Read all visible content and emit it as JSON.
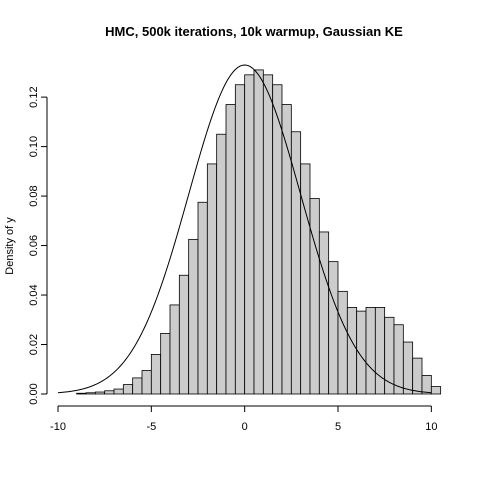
{
  "chart_data": {
    "type": "bar",
    "title": "HMC, 500k iterations, 10k warmup, Gaussian KE",
    "xlabel": "",
    "ylabel": "Density of y",
    "xlim": [
      -10,
      11
    ],
    "ylim": [
      0,
      0.135
    ],
    "x_ticks": [
      -10,
      -5,
      0,
      5,
      10
    ],
    "x_tick_labels": [
      "-10",
      "-5",
      "0",
      "5",
      "10"
    ],
    "y_ticks": [
      0.0,
      0.02,
      0.04,
      0.06,
      0.08,
      0.1,
      0.12
    ],
    "y_tick_labels": [
      "0.00",
      "0.02",
      "0.04",
      "0.06",
      "0.08",
      "0.10",
      "0.12"
    ],
    "grid": false,
    "histogram": {
      "bin_width": 0.5,
      "bin_starts": [
        -9.0,
        -8.5,
        -8.0,
        -7.5,
        -7.0,
        -6.5,
        -6.0,
        -5.5,
        -5.0,
        -4.5,
        -4.0,
        -3.5,
        -3.0,
        -2.5,
        -2.0,
        -1.5,
        -1.0,
        -0.5,
        0.0,
        0.5,
        1.0,
        1.5,
        2.0,
        2.5,
        3.0,
        3.5,
        4.0,
        4.5,
        5.0,
        5.5,
        6.0,
        6.5,
        7.0,
        7.5,
        8.0,
        8.5,
        9.0,
        9.5,
        10.0
      ],
      "densities": [
        0.0003,
        0.0005,
        0.0008,
        0.0013,
        0.002,
        0.0038,
        0.0065,
        0.0095,
        0.016,
        0.0245,
        0.036,
        0.048,
        0.0625,
        0.0775,
        0.093,
        0.105,
        0.117,
        0.125,
        0.129,
        0.131,
        0.129,
        0.125,
        0.117,
        0.106,
        0.093,
        0.079,
        0.0655,
        0.0535,
        0.0415,
        0.035,
        0.0335,
        0.035,
        0.035,
        0.031,
        0.028,
        0.021,
        0.0145,
        0.0075,
        0.003
      ]
    },
    "curve": {
      "type": "normal-density",
      "mean": 0,
      "sd": 3,
      "x_range": [
        -10,
        10
      ]
    }
  }
}
